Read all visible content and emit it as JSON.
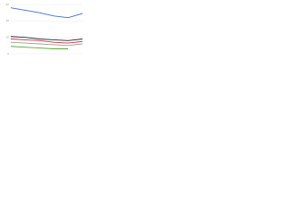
{
  "chart_data": {
    "type": "line",
    "categories": [
      null,
      null,
      null,
      null,
      null,
      null
    ],
    "series": [
      {
        "color": "#3a6fd8",
        "values": [
          56,
          53,
          50,
          46,
          44,
          49
        ]
      },
      {
        "color": "#1c2b4a",
        "values": [
          21,
          20,
          18,
          17,
          16,
          18
        ]
      },
      {
        "color": "#d9332e",
        "values": [
          18,
          17,
          16,
          14,
          13,
          15
        ]
      },
      {
        "color": "#9e9e9e",
        "values": [
          14,
          13,
          12,
          11,
          10,
          12
        ]
      },
      {
        "color": "#5aa832",
        "values": [
          9,
          8,
          7,
          6,
          6,
          null
        ]
      }
    ],
    "ylim": [
      0,
      60
    ],
    "yticks": [
      0,
      20,
      40,
      60
    ],
    "grid": true
  }
}
